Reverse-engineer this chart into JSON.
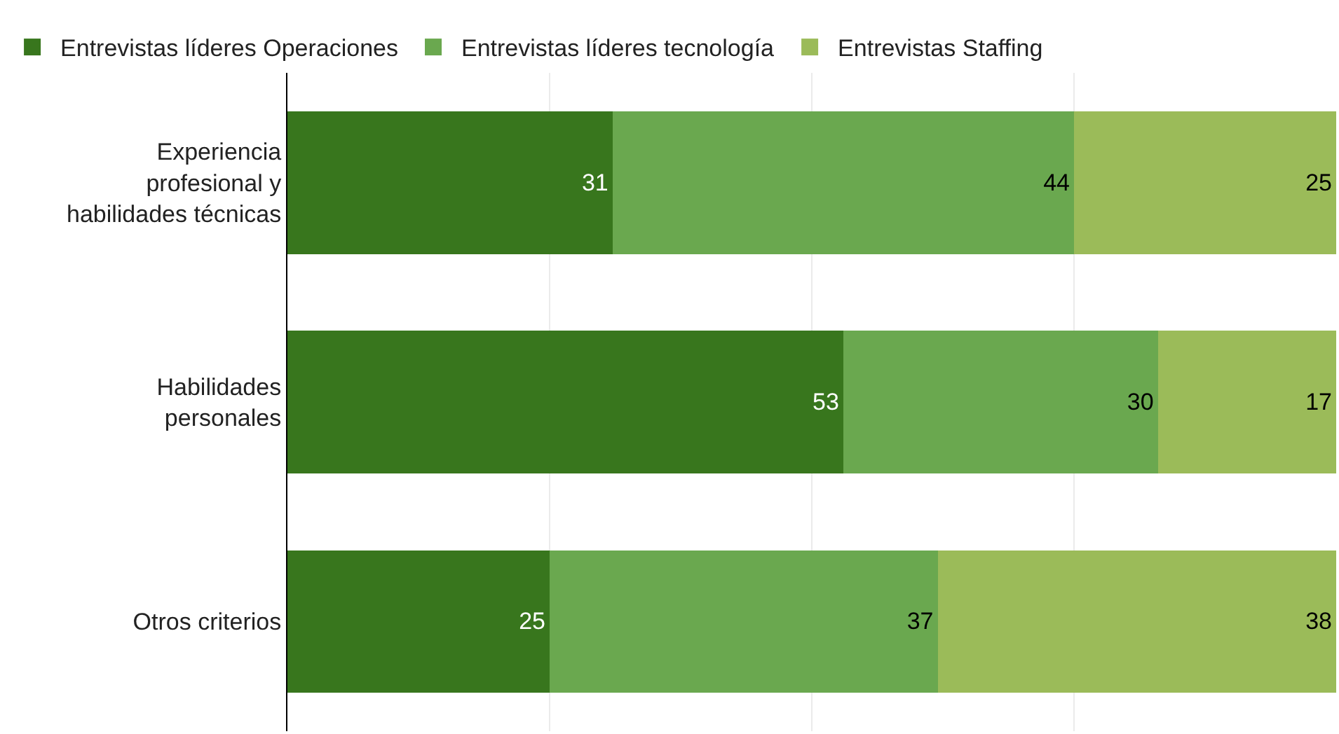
{
  "chart_data": {
    "type": "bar",
    "orientation": "horizontal",
    "stacked": true,
    "categories": [
      "Experiencia profesional y habilidades técnicas",
      "Habilidades personales",
      "Otros criterios"
    ],
    "series": [
      {
        "name": "Entrevistas líderes Operaciones",
        "color": "#38761d",
        "values": [
          31,
          53,
          25
        ]
      },
      {
        "name": "Entrevistas líderes tecnología",
        "color": "#6aa84f",
        "values": [
          44,
          30,
          37
        ]
      },
      {
        "name": "Entrevistas Staffing",
        "color": "#9bbb59",
        "values": [
          25,
          17,
          38
        ]
      }
    ],
    "xlim": [
      0,
      100
    ],
    "xticks": [
      {
        "value": 0,
        "label": null
      },
      {
        "value": 25,
        "label": null
      },
      {
        "value": 50,
        "label": null
      },
      {
        "value": 75,
        "label": null
      },
      {
        "value": 100,
        "label": null
      }
    ],
    "tick_labels": "y",
    "grid": "x",
    "legend": "top left",
    "data_labels": true
  }
}
